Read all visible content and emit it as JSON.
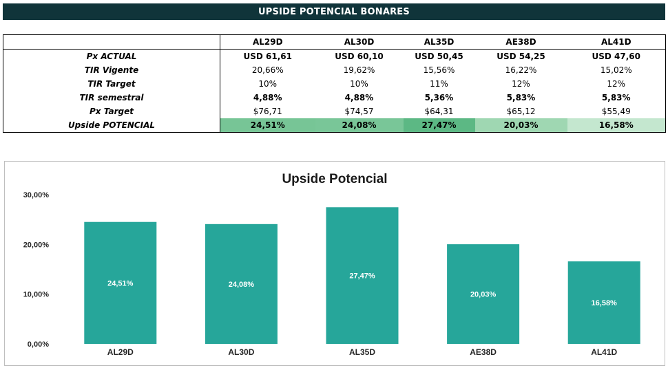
{
  "banner": {
    "title": "UPSIDE POTENCIAL BONARES"
  },
  "table": {
    "columns": [
      "AL29D",
      "AL30D",
      "AL35D",
      "AE38D",
      "AL41D"
    ],
    "rows": [
      {
        "label": "Px ACTUAL",
        "values": [
          "USD 61,61",
          "USD 60,10",
          "USD 50,45",
          "USD 54,25",
          "USD 47,60"
        ],
        "bold": true
      },
      {
        "label": "TIR Vigente",
        "values": [
          "20,66%",
          "19,62%",
          "15,56%",
          "16,22%",
          "15,02%"
        ],
        "bold": false
      },
      {
        "label": "TIR Target",
        "values": [
          "10%",
          "10%",
          "11%",
          "12%",
          "12%"
        ],
        "bold": false
      },
      {
        "label": "TIR semestral",
        "values": [
          "4,88%",
          "4,88%",
          "5,36%",
          "5,83%",
          "5,83%"
        ],
        "bold": true
      },
      {
        "label": "Px Target",
        "values": [
          "$76,71",
          "$74,57",
          "$64,31",
          "$65,12",
          "$55,49"
        ],
        "bold": false
      },
      {
        "label": "Upside POTENCIAL",
        "values": [
          "24,51%",
          "24,08%",
          "27,47%",
          "20,03%",
          "16,58%"
        ],
        "bold": true,
        "cell_colors": [
          "#77c596",
          "#79c698",
          "#5cb884",
          "#9fd7b2",
          "#c4e7cf"
        ]
      }
    ]
  },
  "chart_data": {
    "type": "bar",
    "title": "Upside Potencial",
    "categories": [
      "AL29D",
      "AL30D",
      "AL35D",
      "AE38D",
      "AL41D"
    ],
    "values": [
      24.51,
      24.08,
      27.47,
      20.03,
      16.58
    ],
    "data_labels": [
      "24,51%",
      "24,08%",
      "27,47%",
      "20,03%",
      "16,58%"
    ],
    "ylim": [
      0,
      30
    ],
    "yticks": [
      0,
      10,
      20,
      30
    ],
    "ytick_labels": [
      "0,00%",
      "10,00%",
      "20,00%",
      "30,00%"
    ],
    "bar_color": "#26a69a",
    "grid": false,
    "legend": "none",
    "xlabel": "",
    "ylabel": ""
  }
}
